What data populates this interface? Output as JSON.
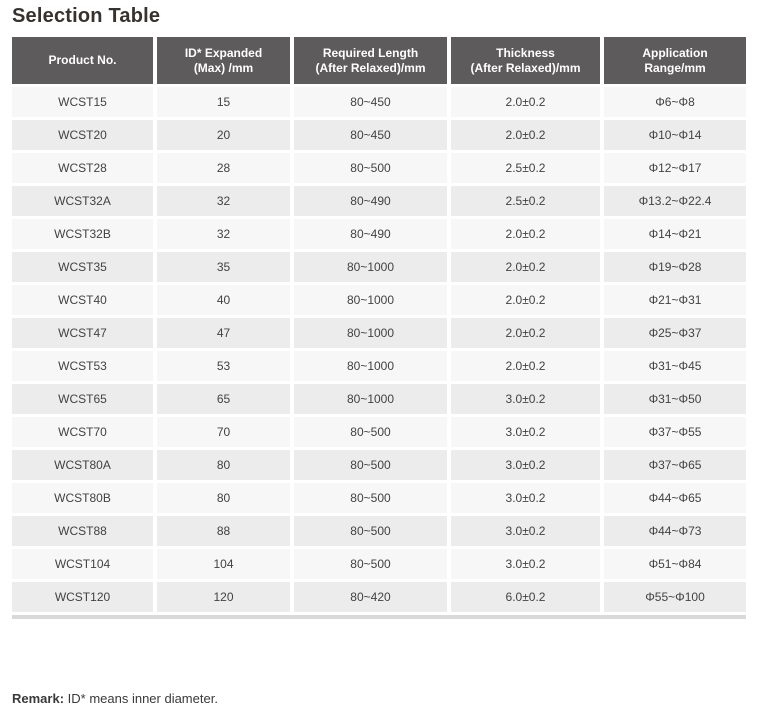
{
  "page": {
    "title": "Selection Table",
    "remark_label": "Remark:",
    "remark_text": " ID* means inner diameter."
  },
  "colors": {
    "header_background": "#5d5b5b",
    "header_text": "#ffffff",
    "row_light": "#f7f7f7",
    "row_dark": "#ececec",
    "body_text": "#424242",
    "bottom_border": "#d9d9d9"
  },
  "table": {
    "columns": [
      "Product No.",
      "ID* Expanded\n(Max) /mm",
      "Required Length\n(After Relaxed)/mm",
      "Thickness\n(After Relaxed)/mm",
      "Application\nRange/mm"
    ],
    "rows": [
      [
        "WCST15",
        "15",
        "80~450",
        "2.0±0.2",
        "Φ6~Φ8"
      ],
      [
        "WCST20",
        "20",
        "80~450",
        "2.0±0.2",
        "Φ10~Φ14"
      ],
      [
        "WCST28",
        "28",
        "80~500",
        "2.5±0.2",
        "Φ12~Φ17"
      ],
      [
        "WCST32A",
        "32",
        "80~490",
        "2.5±0.2",
        "Φ13.2~Φ22.4"
      ],
      [
        "WCST32B",
        "32",
        "80~490",
        "2.0±0.2",
        "Φ14~Φ21"
      ],
      [
        "WCST35",
        "35",
        "80~1000",
        "2.0±0.2",
        "Φ19~Φ28"
      ],
      [
        "WCST40",
        "40",
        "80~1000",
        "2.0±0.2",
        "Φ21~Φ31"
      ],
      [
        "WCST47",
        "47",
        "80~1000",
        "2.0±0.2",
        "Φ25~Φ37"
      ],
      [
        "WCST53",
        "53",
        "80~1000",
        "2.0±0.2",
        "Φ31~Φ45"
      ],
      [
        "WCST65",
        "65",
        "80~1000",
        "3.0±0.2",
        "Φ31~Φ50"
      ],
      [
        "WCST70",
        "70",
        "80~500",
        "3.0±0.2",
        "Φ37~Φ55"
      ],
      [
        "WCST80A",
        "80",
        "80~500",
        "3.0±0.2",
        "Φ37~Φ65"
      ],
      [
        "WCST80B",
        "80",
        "80~500",
        "3.0±0.2",
        "Φ44~Φ65"
      ],
      [
        "WCST88",
        "88",
        "80~500",
        "3.0±0.2",
        "Φ44~Φ73"
      ],
      [
        "WCST104",
        "104",
        "80~500",
        "3.0±0.2",
        "Φ51~Φ84"
      ],
      [
        "WCST120",
        "120",
        "80~420",
        "6.0±0.2",
        "Φ55~Φ100"
      ]
    ]
  }
}
